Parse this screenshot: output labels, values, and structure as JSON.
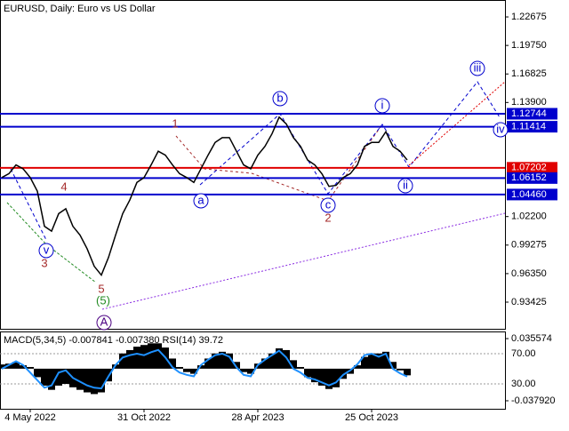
{
  "chart_data": [
    {
      "type": "line",
      "title": "EURUSD, Daily:  Euro vs US Dollar",
      "color": "#000000",
      "categories": [
        null,
        null,
        null,
        null,
        "4 May 2022",
        null,
        null,
        null,
        null,
        null,
        null,
        null,
        null,
        null,
        null,
        null,
        null,
        null,
        null,
        null,
        "31 Oct 2022",
        null,
        null,
        null,
        null,
        null,
        null,
        null,
        null,
        null,
        null,
        null,
        null,
        null,
        null,
        null,
        "28 Apr 2023",
        null,
        null,
        null,
        null,
        null,
        null,
        null,
        null,
        null,
        null,
        null,
        null,
        null,
        null,
        null,
        "25 Oct 2023",
        null,
        null,
        null,
        null,
        null
      ],
      "values": [
        1.062,
        1.066,
        1.075,
        1.071,
        1.062,
        1.048,
        1.012,
        1.007,
        1.025,
        1.03,
        1.012,
        1.003,
        0.989,
        0.971,
        0.962,
        0.98,
        1.003,
        1.025,
        1.039,
        1.057,
        1.062,
        1.075,
        1.089,
        1.085,
        1.075,
        1.066,
        1.062,
        1.057,
        1.071,
        1.085,
        1.098,
        1.103,
        1.103,
        1.089,
        1.075,
        1.071,
        1.085,
        1.094,
        1.107,
        1.124,
        1.117,
        1.103,
        1.094,
        1.08,
        1.075,
        1.066,
        1.053,
        1.054,
        1.062,
        1.066,
        1.075,
        1.094,
        1.098,
        1.098,
        1.109,
        1.094,
        1.089,
        1.08
      ],
      "ylim": [
        0.9069,
        1.2441
      ],
      "yticks": [
        {
          "value": 1.22675,
          "label": "1.22675"
        },
        {
          "value": 1.1975,
          "label": "1.19750"
        },
        {
          "value": 1.16825,
          "label": "1.16825"
        },
        {
          "value": 1.139,
          "label": "1.13900"
        },
        {
          "value": 1.022,
          "label": "1.02200"
        },
        {
          "value": 0.99275,
          "label": "0.99275"
        },
        {
          "value": 0.9635,
          "label": "0.96350"
        },
        {
          "value": 0.93425,
          "label": "0.93425"
        }
      ],
      "levels": [
        {
          "value": 1.12744,
          "label": "1.12744",
          "color": "#0000cd"
        },
        {
          "value": 1.11414,
          "label": "1.11414",
          "color": "#0000cd"
        },
        {
          "value": 1.07202,
          "label": "1.07202",
          "color": "#e00000"
        },
        {
          "value": 1.06152,
          "label": "1.06152",
          "color": "#0000cd"
        },
        {
          "value": 1.0446,
          "label": "1.04460",
          "color": "#0000cd"
        }
      ],
      "annotations": [
        {
          "text": "1",
          "color": "#a52a2a",
          "circled": false
        },
        {
          "text": "4",
          "color": "#a52a2a",
          "circled": false
        },
        {
          "text": "3",
          "color": "#a52a2a",
          "circled": false
        },
        {
          "text": "5",
          "color": "#a52a2a",
          "circled": false
        },
        {
          "text": "(5)",
          "color": "#228b22",
          "circled": false
        },
        {
          "text": "A",
          "color": "#4b0082",
          "circled": true
        },
        {
          "text": "a",
          "color": "#0000cd",
          "circled": true
        },
        {
          "text": "b",
          "color": "#0000cd",
          "circled": true
        },
        {
          "text": "c",
          "color": "#0000cd",
          "circled": true
        },
        {
          "text": "i",
          "color": "#0000cd",
          "circled": true
        },
        {
          "text": "ii",
          "color": "#0000cd",
          "circled": true
        },
        {
          "text": "iii",
          "color": "#0000cd",
          "circled": true
        },
        {
          "text": "iv",
          "color": "#0000cd",
          "circled": true
        },
        {
          "text": "v",
          "color": "#0000cd",
          "circled": true
        },
        {
          "text": "2",
          "color": "#a52a2a",
          "circled": false
        }
      ]
    },
    {
      "type": "bar",
      "title": "MACD(5,34,5) -0.007841 -0.007380 RSI(14) 39.72",
      "color": "#000000",
      "rsi_color": "#1e90ff",
      "values": [
        0.005,
        0.006,
        0.008,
        0.004,
        0.002,
        -0.01,
        -0.02,
        -0.025,
        -0.02,
        -0.018,
        -0.022,
        -0.025,
        -0.028,
        -0.03,
        -0.028,
        -0.015,
        0.005,
        0.018,
        0.022,
        0.026,
        0.028,
        0.03,
        0.03,
        0.025,
        0.012,
        0.002,
        -0.004,
        -0.006,
        0.004,
        0.012,
        0.018,
        0.02,
        0.018,
        0.008,
        -0.004,
        -0.006,
        0.006,
        0.012,
        0.018,
        0.024,
        0.022,
        0.01,
        0.002,
        -0.01,
        -0.016,
        -0.02,
        -0.024,
        -0.022,
        -0.012,
        -0.006,
        0.004,
        0.014,
        0.018,
        0.018,
        0.02,
        0.008,
        -0.002,
        -0.007841
      ],
      "rsi_values": [
        50,
        55,
        60,
        55,
        45,
        35,
        25,
        28,
        45,
        48,
        38,
        33,
        28,
        25,
        24,
        40,
        55,
        65,
        68,
        70,
        68,
        72,
        75,
        65,
        52,
        45,
        42,
        40,
        55,
        62,
        68,
        70,
        66,
        52,
        42,
        40,
        55,
        62,
        68,
        74,
        65,
        50,
        45,
        38,
        36,
        32,
        28,
        32,
        42,
        48,
        56,
        68,
        70,
        66,
        70,
        50,
        44,
        39.72
      ],
      "ylim": [
        -0.0474,
        0.044
      ],
      "y2lim": [
        -2.9,
        99.4
      ],
      "yticks": [
        0.035574,
        {
          "value": -0.03792,
          "label": "-0.037920"
        }
      ],
      "y2ticks": [
        {
          "value": 70,
          "label": "70.00"
        },
        {
          "value": 30,
          "label": "30.00"
        }
      ]
    }
  ]
}
